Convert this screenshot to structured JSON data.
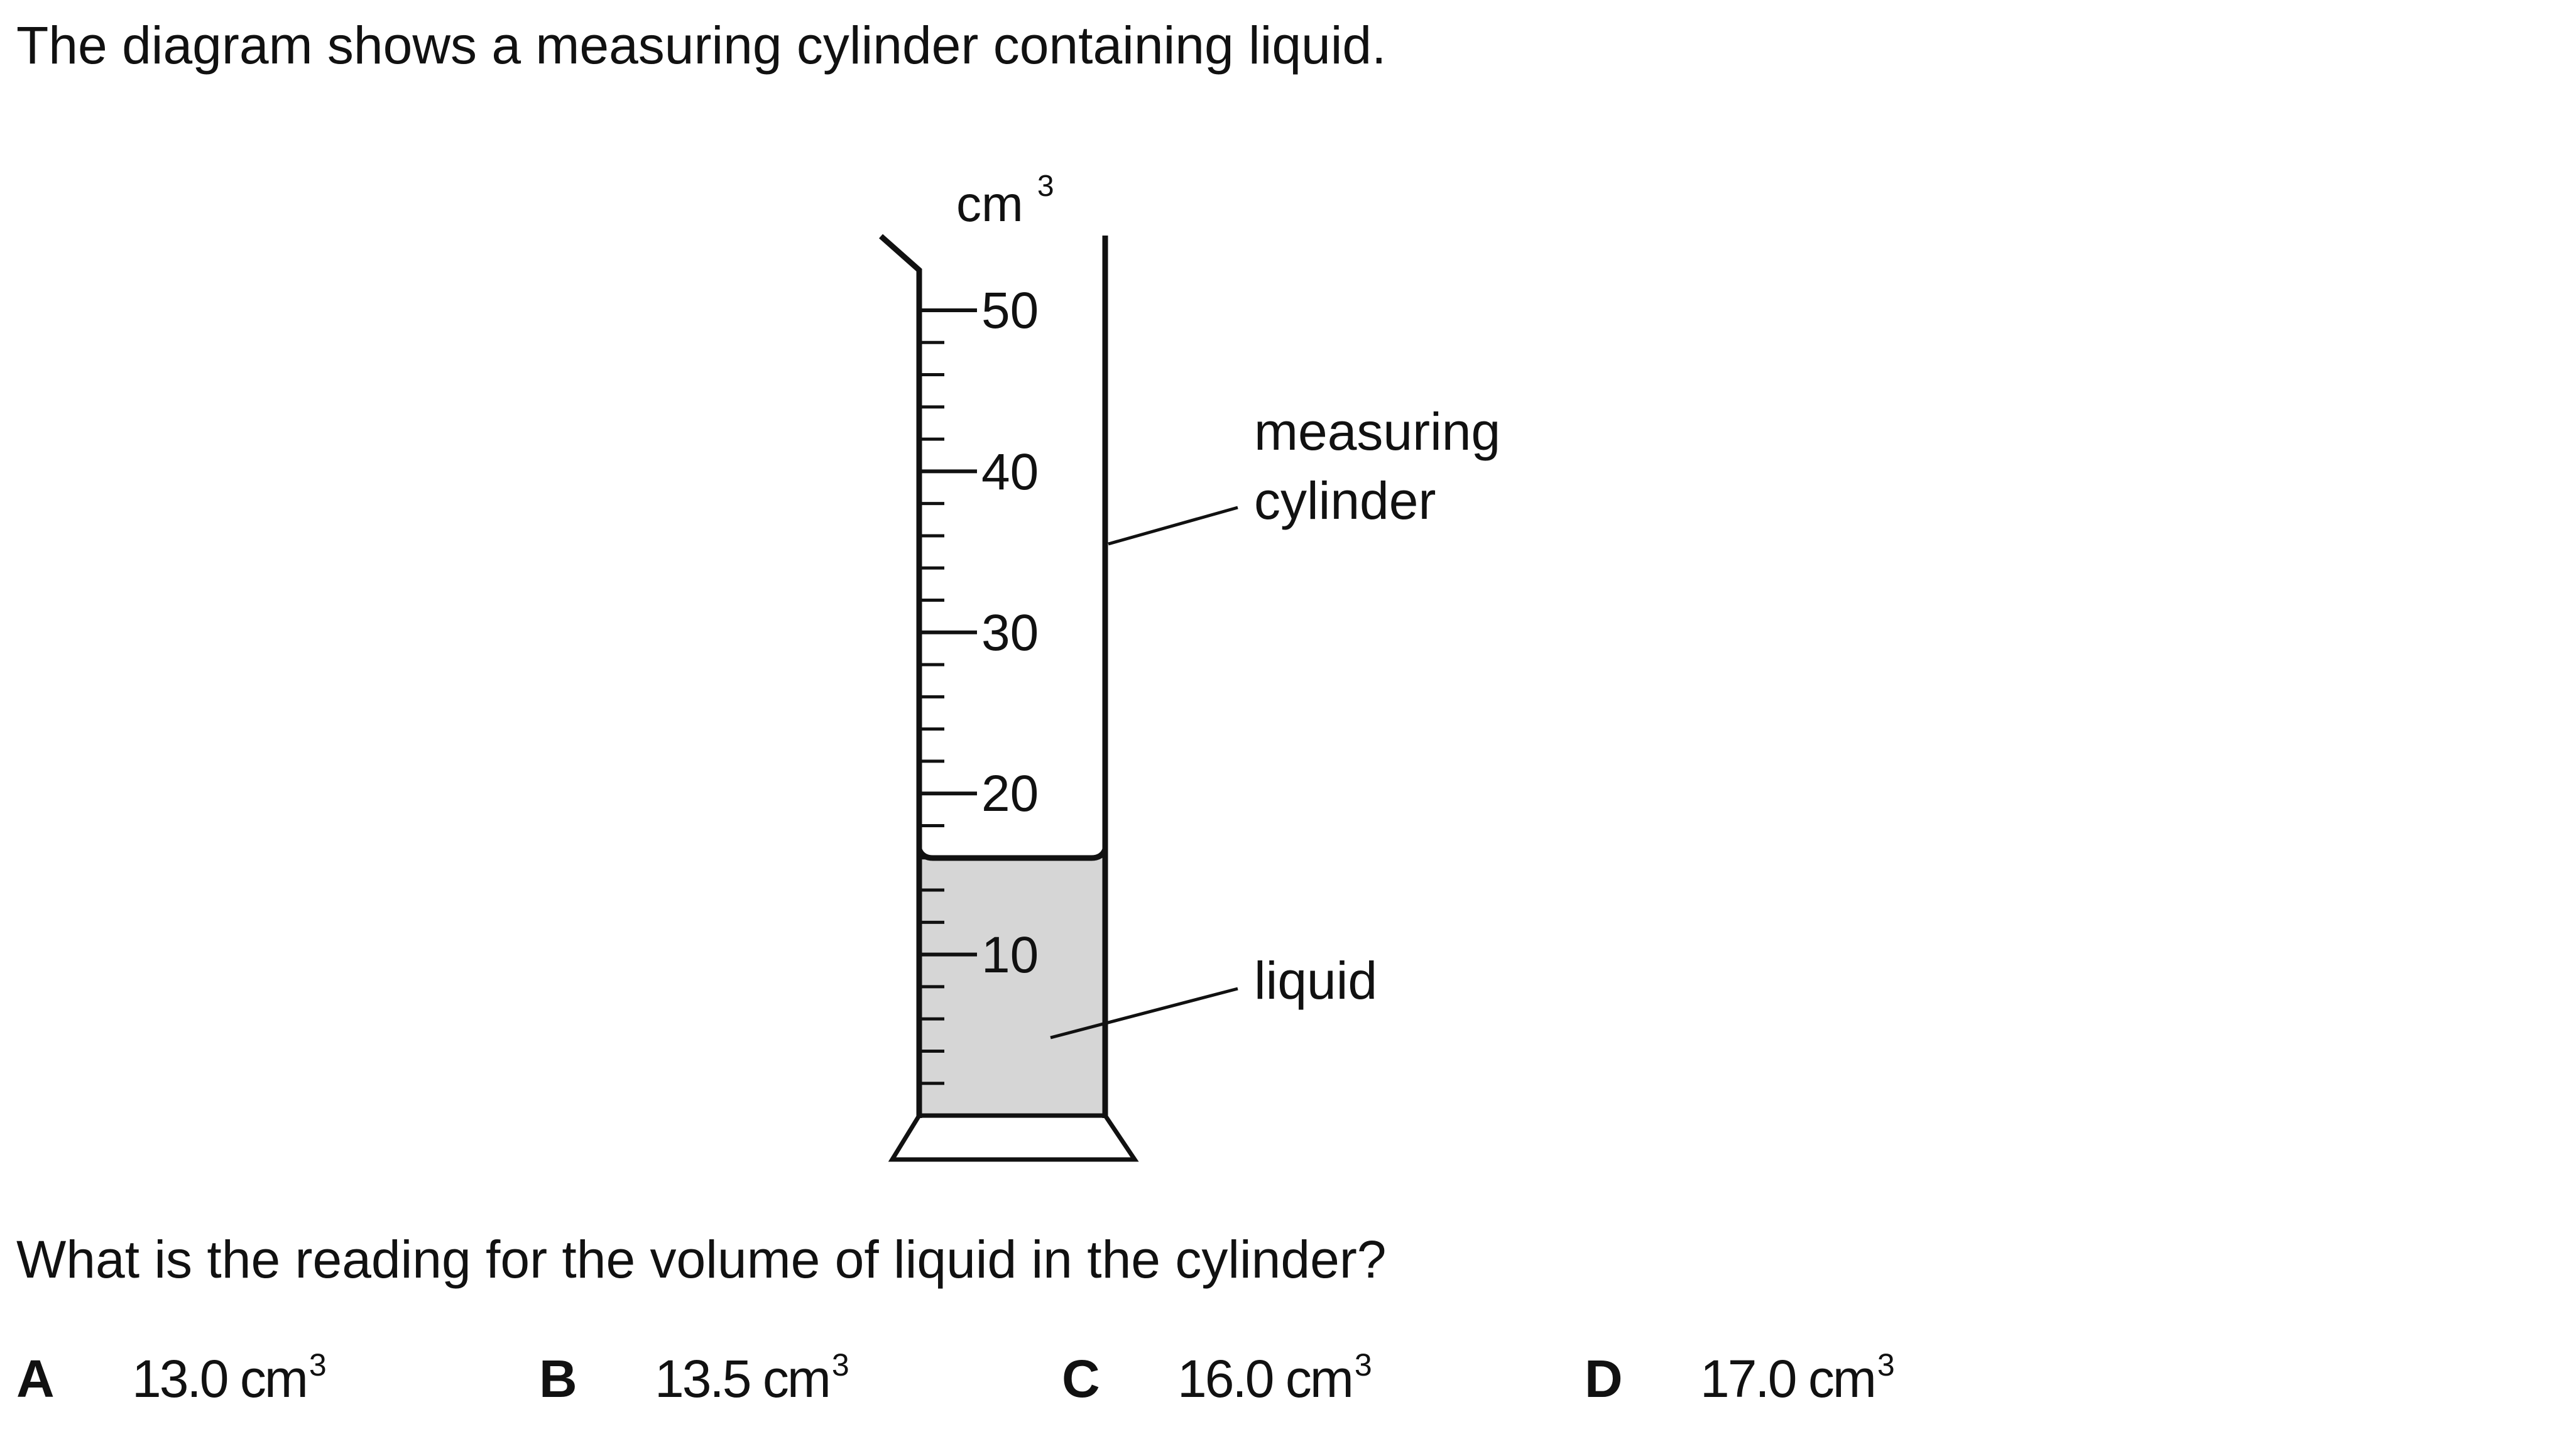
{
  "intro_text": "The diagram shows a measuring cylinder containing liquid.",
  "diagram": {
    "unit": "cm",
    "unit_power": "3",
    "scale_labels": [
      "50",
      "40",
      "30",
      "20",
      "10"
    ],
    "label_cylinder_line1": "measuring",
    "label_cylinder_line2": "cylinder",
    "label_liquid": "liquid",
    "liquid_color": "#d6d6d6"
  },
  "question": "What is the reading for the volume of liquid in the cylinder?",
  "options": [
    {
      "letter": "A",
      "value": "13.0 cm",
      "power": "3"
    },
    {
      "letter": "B",
      "value": "13.5 cm",
      "power": "3"
    },
    {
      "letter": "C",
      "value": "16.0 cm",
      "power": "3"
    },
    {
      "letter": "D",
      "value": "17.0 cm",
      "power": "3"
    }
  ]
}
